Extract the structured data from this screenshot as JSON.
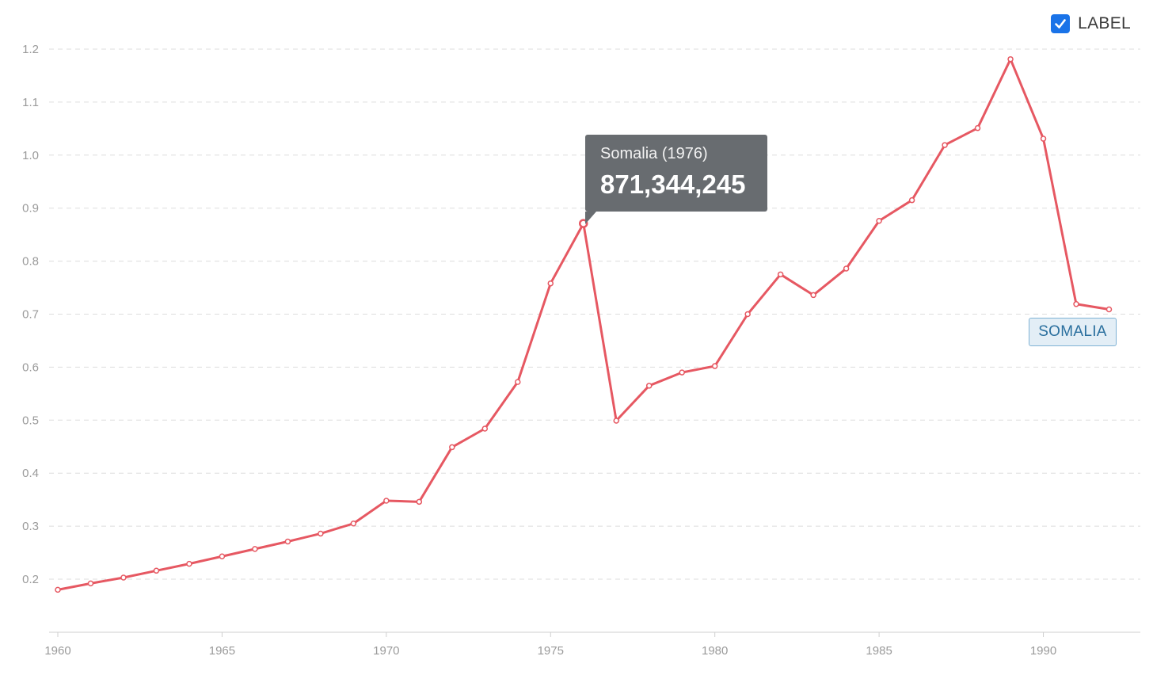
{
  "legend": {
    "label": "LABEL",
    "checked": true,
    "checkbox_color": "#1a73e8"
  },
  "tooltip": {
    "title": "Somalia (1976)",
    "value": "871,344,245"
  },
  "series_label": "SOMALIA",
  "colors": {
    "line": "#e65862",
    "grid": "#dddddd",
    "tooltip_bg": "#686c70"
  },
  "chart_data": {
    "type": "line",
    "title": "",
    "xlabel": "",
    "ylabel": "",
    "xlim": [
      1960,
      1993
    ],
    "ylim": [
      0.1,
      1.2
    ],
    "grid": true,
    "x_ticks": [
      1960,
      1965,
      1970,
      1975,
      1980,
      1985,
      1990
    ],
    "y_ticks": [
      0.2,
      0.3,
      0.4,
      0.5,
      0.6,
      0.7,
      0.8,
      0.9,
      1.0,
      1.1,
      1.2
    ],
    "y_tick_labels": [
      "0.2",
      "0.3",
      "0.4",
      "0.5",
      "0.6",
      "0.7",
      "0.8",
      "0.9",
      "1.0",
      "1.1",
      "1.2"
    ],
    "highlight_x": 1976,
    "series": [
      {
        "name": "Somalia",
        "x": [
          1960,
          1961,
          1962,
          1963,
          1964,
          1965,
          1966,
          1967,
          1968,
          1969,
          1970,
          1971,
          1972,
          1973,
          1974,
          1975,
          1976,
          1977,
          1978,
          1979,
          1980,
          1981,
          1982,
          1983,
          1984,
          1985,
          1986,
          1987,
          1988,
          1989,
          1990,
          1991,
          1992
        ],
        "values": [
          0.18,
          0.192,
          0.203,
          0.216,
          0.229,
          0.243,
          0.257,
          0.271,
          0.286,
          0.305,
          0.348,
          0.346,
          0.449,
          0.484,
          0.572,
          0.758,
          0.871,
          0.499,
          0.565,
          0.59,
          0.602,
          0.7,
          0.775,
          0.736,
          0.786,
          0.876,
          0.915,
          1.019,
          1.051,
          1.181,
          1.031,
          0.719,
          0.709
        ]
      }
    ]
  }
}
